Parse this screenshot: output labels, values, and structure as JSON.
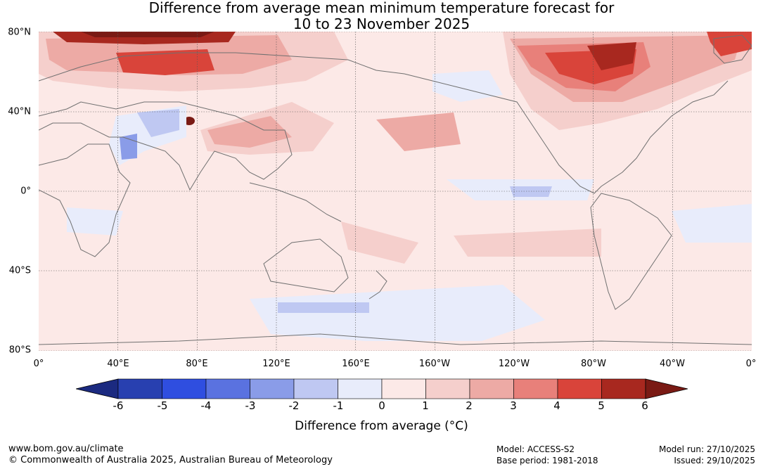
{
  "title": {
    "line1": "Difference from average mean minimum temperature forecast for",
    "line2": "10 to 23 November 2025"
  },
  "map": {
    "lat_labels": [
      "80°N",
      "40°N",
      "0°",
      "40°S",
      "80°S"
    ],
    "lon_labels": [
      "0°",
      "40°E",
      "80°E",
      "120°E",
      "160°E",
      "160°W",
      "120°W",
      "80°W",
      "40°W",
      "0°"
    ],
    "background_color": "#fce9e7",
    "coastline_color": "#707070"
  },
  "colorbar": {
    "title": "Difference from average (°C)",
    "ticks": [
      "-6",
      "-5",
      "-4",
      "-3",
      "-2",
      "-1",
      "0",
      "1",
      "2",
      "3",
      "4",
      "5",
      "6"
    ],
    "under_color": "#1b2a80",
    "over_color": "#7a1a14",
    "colors": [
      "#2840b0",
      "#2f4ee0",
      "#5a72e0",
      "#8a9ce8",
      "#bfc8f2",
      "#e8ecfb",
      "#fce9e7",
      "#f5cfcc",
      "#edaaa5",
      "#e8807a",
      "#d9443a",
      "#a8281f"
    ]
  },
  "footer": {
    "website": "www.bom.gov.au/climate",
    "copyright": "© Commonwealth of Australia 2025, Australian Bureau of Meteorology",
    "model": "Model: ACCESS-S2",
    "base_period": "Base period: 1981-2018",
    "model_run": "Model run: 27/10/2025",
    "issued": "Issued: 29/10/2025"
  }
}
